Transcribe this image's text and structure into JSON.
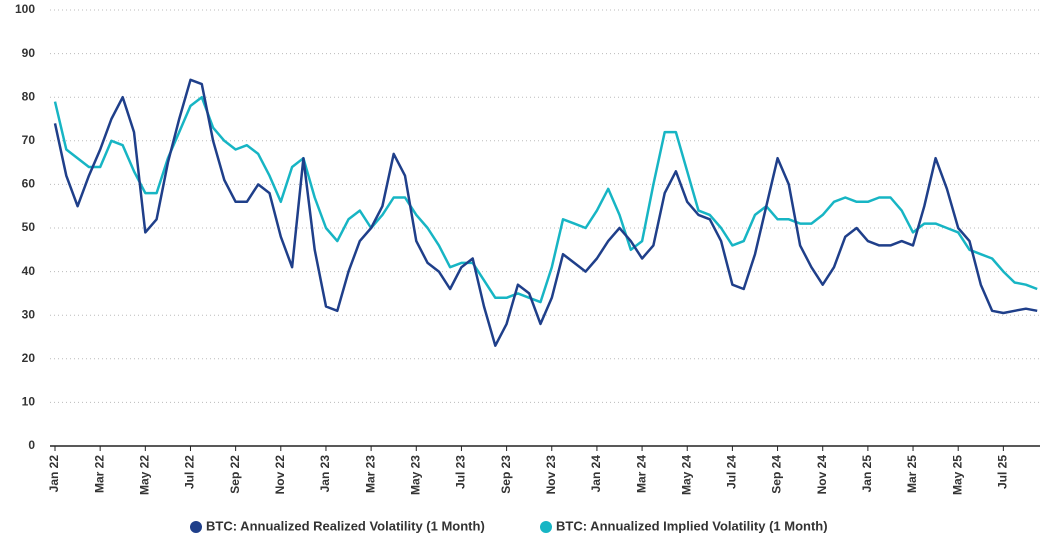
{
  "chart_data": {
    "type": "line",
    "categories": [
      "Jan 22",
      null,
      null,
      null,
      "Mar 22",
      null,
      null,
      null,
      "May 22",
      null,
      null,
      null,
      "Jul 22",
      null,
      null,
      null,
      "Sep 22",
      null,
      null,
      null,
      "Nov 22",
      null,
      null,
      null,
      "Jan 23",
      null,
      null,
      null,
      "Mar 23",
      null,
      null,
      null,
      "May 23",
      null,
      null,
      null,
      "Jul 23",
      null,
      null,
      null,
      "Sep 23",
      null,
      null,
      null,
      "Nov 23",
      null,
      null,
      null,
      "Jan 24",
      null,
      null,
      null,
      "Mar 24",
      null,
      null,
      null,
      "May 24",
      null,
      null,
      null,
      "Jul 24",
      null,
      null,
      null,
      "Sep 24",
      null,
      null,
      null,
      "Nov 24",
      null,
      null,
      null,
      "Jan 25",
      null,
      null,
      null,
      "Mar 25",
      null,
      null,
      null,
      "May 25",
      null,
      null,
      null,
      "Jul 25",
      null,
      null,
      null
    ],
    "series": [
      {
        "name": "BTC: Annualized Realized Volatility (1 Month)",
        "color": "#1f3f8a",
        "values": [
          74,
          62,
          55,
          62,
          68,
          75,
          80,
          72,
          49,
          52,
          65,
          75,
          84,
          83,
          70,
          61,
          56,
          56,
          60,
          58,
          48,
          41,
          66,
          45,
          32,
          31,
          40,
          47,
          50,
          55,
          67,
          62,
          47,
          42,
          40,
          36,
          41,
          43,
          32,
          23,
          28,
          37,
          35,
          28,
          34,
          44,
          42,
          40,
          43,
          47,
          50,
          47,
          43,
          46,
          58,
          63,
          56,
          53,
          52,
          47,
          37,
          36,
          44,
          55,
          66,
          60,
          46,
          41,
          37,
          41,
          48,
          50,
          47,
          46,
          46,
          47,
          46,
          55,
          66,
          59,
          50,
          47,
          37,
          31,
          30.5,
          31,
          31.5,
          31
        ]
      },
      {
        "name": "BTC: Annualized Implied Volatility (1 Month)",
        "color": "#17b5c4",
        "values": [
          79,
          68,
          66,
          64,
          64,
          70,
          69,
          63,
          58,
          58,
          66,
          72,
          78,
          80,
          73,
          70,
          68,
          69,
          67,
          62,
          56,
          64,
          66,
          57,
          50,
          47,
          52,
          54,
          50,
          53,
          57,
          57,
          53,
          50,
          46,
          41,
          42,
          42,
          38,
          34,
          34,
          35,
          34,
          33,
          41,
          52,
          51,
          50,
          54,
          59,
          53,
          45,
          47,
          60,
          72,
          72,
          63,
          54,
          53,
          50,
          46,
          47,
          53,
          55,
          52,
          52,
          51,
          51,
          53,
          56,
          57,
          56,
          56,
          57,
          57,
          54,
          49,
          51,
          51,
          50,
          49,
          45,
          44,
          43,
          40,
          37.5,
          37,
          36
        ]
      }
    ],
    "ylim": [
      0,
      100
    ],
    "yticks": [
      0,
      10,
      20,
      30,
      40,
      50,
      60,
      70,
      80,
      90,
      100
    ],
    "grid": true,
    "legend": "bottom"
  }
}
